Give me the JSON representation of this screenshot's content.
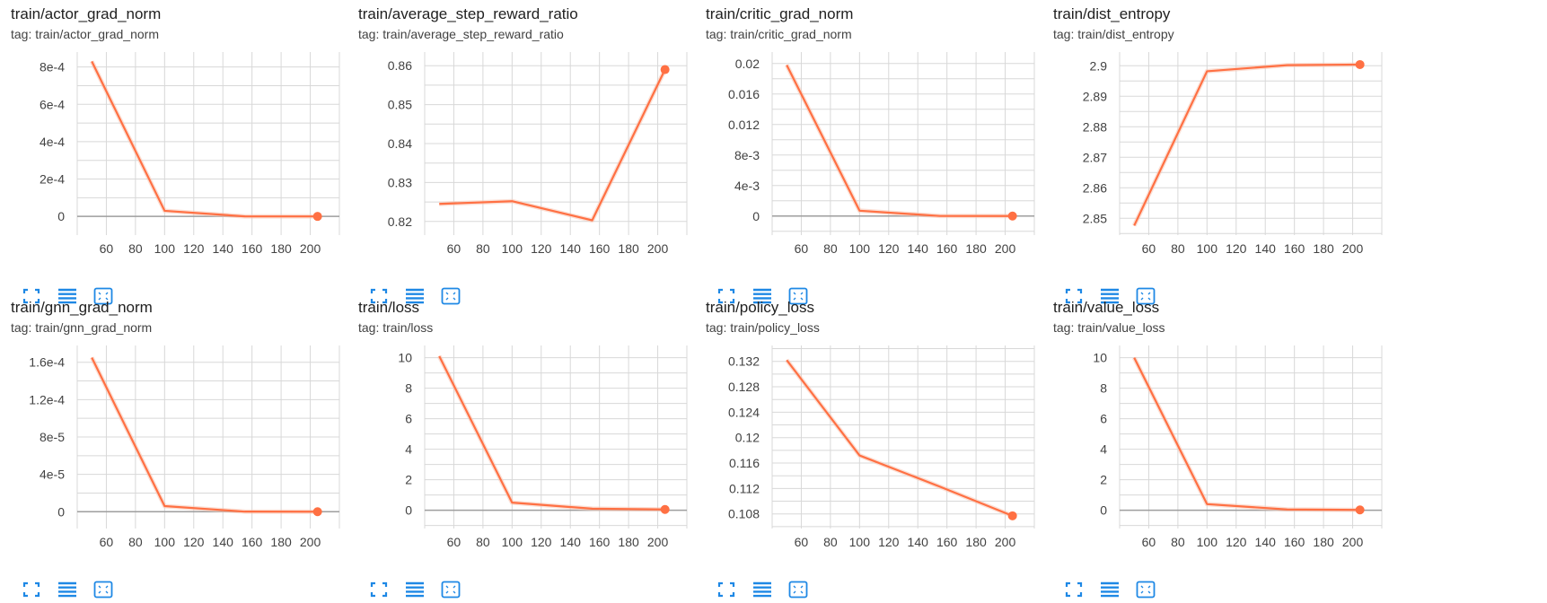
{
  "colors": {
    "line": "#ff7043",
    "smooth": "#f8c7b4",
    "grid": "#d8d8d8",
    "zero": "#9e9e9e",
    "icon": "#1e88e5"
  },
  "toolbar_icons": [
    "fit-screen-icon",
    "data-table-icon",
    "fit-domain-icon"
  ],
  "chart_data": [
    {
      "type": "line",
      "title": "train/actor_grad_norm",
      "tag": "tag: train/actor_grad_norm",
      "x": [
        50,
        100,
        155,
        205
      ],
      "y": [
        0.00083,
        3e-05,
        3e-07,
        0.0
      ],
      "xlim": [
        40,
        220
      ],
      "ylim": [
        -0.0001,
        0.00088
      ],
      "xticks": [
        60,
        80,
        100,
        120,
        140,
        160,
        180,
        200
      ],
      "yticks": [
        0,
        0.0002,
        0.0004,
        0.0006,
        0.0008
      ],
      "yticklabels": [
        "0",
        "2e-4",
        "4e-4",
        "6e-4",
        "8e-4"
      ]
    },
    {
      "type": "line",
      "title": "train/average_step_reward_ratio",
      "tag": "tag: train/average_step_reward_ratio",
      "x": [
        50,
        100,
        155,
        205
      ],
      "y": [
        0.8245,
        0.8252,
        0.8203,
        0.859
      ],
      "xlim": [
        40,
        220
      ],
      "ylim": [
        0.8165,
        0.8635
      ],
      "xticks": [
        60,
        80,
        100,
        120,
        140,
        160,
        180,
        200
      ],
      "yticks": [
        0.82,
        0.83,
        0.84,
        0.85,
        0.86
      ],
      "yticklabels": [
        "0.82",
        "0.83",
        "0.84",
        "0.85",
        "0.86"
      ]
    },
    {
      "type": "line",
      "title": "train/critic_grad_norm",
      "tag": "tag: train/critic_grad_norm",
      "x": [
        50,
        100,
        155,
        205
      ],
      "y": [
        0.0198,
        0.0007,
        1e-05,
        0.0
      ],
      "xlim": [
        40,
        220
      ],
      "ylim": [
        -0.0025,
        0.0215
      ],
      "xticks": [
        60,
        80,
        100,
        120,
        140,
        160,
        180,
        200
      ],
      "yticks": [
        0,
        0.004,
        0.008,
        0.012,
        0.016,
        0.02
      ],
      "yticklabels": [
        "0",
        "4e-3",
        "8e-3",
        "0.012",
        "0.016",
        "0.02"
      ]
    },
    {
      "type": "line",
      "title": "train/dist_entropy",
      "tag": "tag: train/dist_entropy",
      "x": [
        50,
        100,
        155,
        205
      ],
      "y": [
        2.8476,
        2.8982,
        2.9002,
        2.9004
      ],
      "xlim": [
        40,
        220
      ],
      "ylim": [
        2.8445,
        2.9045
      ],
      "xticks": [
        60,
        80,
        100,
        120,
        140,
        160,
        180,
        200
      ],
      "yticks": [
        2.85,
        2.86,
        2.87,
        2.88,
        2.89,
        2.9
      ],
      "yticklabels": [
        "2.85",
        "2.86",
        "2.87",
        "2.88",
        "2.89",
        "2.9"
      ]
    },
    {
      "type": "line",
      "title": "train/gnn_grad_norm",
      "tag": "tag: train/gnn_grad_norm",
      "x": [
        50,
        100,
        155,
        205
      ],
      "y": [
        0.000165,
        6e-06,
        1e-07,
        0.0
      ],
      "xlim": [
        40,
        220
      ],
      "ylim": [
        -1.8e-05,
        0.000178
      ],
      "xticks": [
        60,
        80,
        100,
        120,
        140,
        160,
        180,
        200
      ],
      "yticks": [
        0,
        4e-05,
        8e-05,
        0.00012,
        0.00016
      ],
      "yticklabels": [
        "0",
        "4e-5",
        "8e-5",
        "1.2e-4",
        "1.6e-4"
      ]
    },
    {
      "type": "line",
      "title": "train/loss",
      "tag": "tag: train/loss",
      "x": [
        50,
        100,
        155,
        205
      ],
      "y": [
        10.1,
        0.5,
        0.1,
        0.05
      ],
      "xlim": [
        40,
        220
      ],
      "ylim": [
        -1.2,
        10.8
      ],
      "xticks": [
        60,
        80,
        100,
        120,
        140,
        160,
        180,
        200
      ],
      "yticks": [
        0,
        2,
        4,
        6,
        8,
        10
      ],
      "yticklabels": [
        "0",
        "2",
        "4",
        "6",
        "8",
        "10"
      ]
    },
    {
      "type": "line",
      "title": "train/policy_loss",
      "tag": "tag: train/policy_loss",
      "x": [
        50,
        100,
        155,
        205
      ],
      "y": [
        0.1322,
        0.1172,
        0.1123,
        0.1077
      ],
      "xlim": [
        40,
        220
      ],
      "ylim": [
        0.1057,
        0.1345
      ],
      "xticks": [
        60,
        80,
        100,
        120,
        140,
        160,
        180,
        200
      ],
      "yticks": [
        0.108,
        0.112,
        0.116,
        0.12,
        0.124,
        0.128,
        0.132
      ],
      "yticklabels": [
        "0.108",
        "0.112",
        "0.116",
        "0.12",
        "0.124",
        "0.128",
        "0.132"
      ]
    },
    {
      "type": "line",
      "title": "train/value_loss",
      "tag": "tag: train/value_loss",
      "x": [
        50,
        100,
        155,
        205
      ],
      "y": [
        10.0,
        0.4,
        0.05,
        0.02
      ],
      "xlim": [
        40,
        220
      ],
      "ylim": [
        -1.2,
        10.8
      ],
      "xticks": [
        60,
        80,
        100,
        120,
        140,
        160,
        180,
        200
      ],
      "yticks": [
        0,
        2,
        4,
        6,
        8,
        10
      ],
      "yticklabels": [
        "0",
        "2",
        "4",
        "6",
        "8",
        "10"
      ]
    }
  ]
}
